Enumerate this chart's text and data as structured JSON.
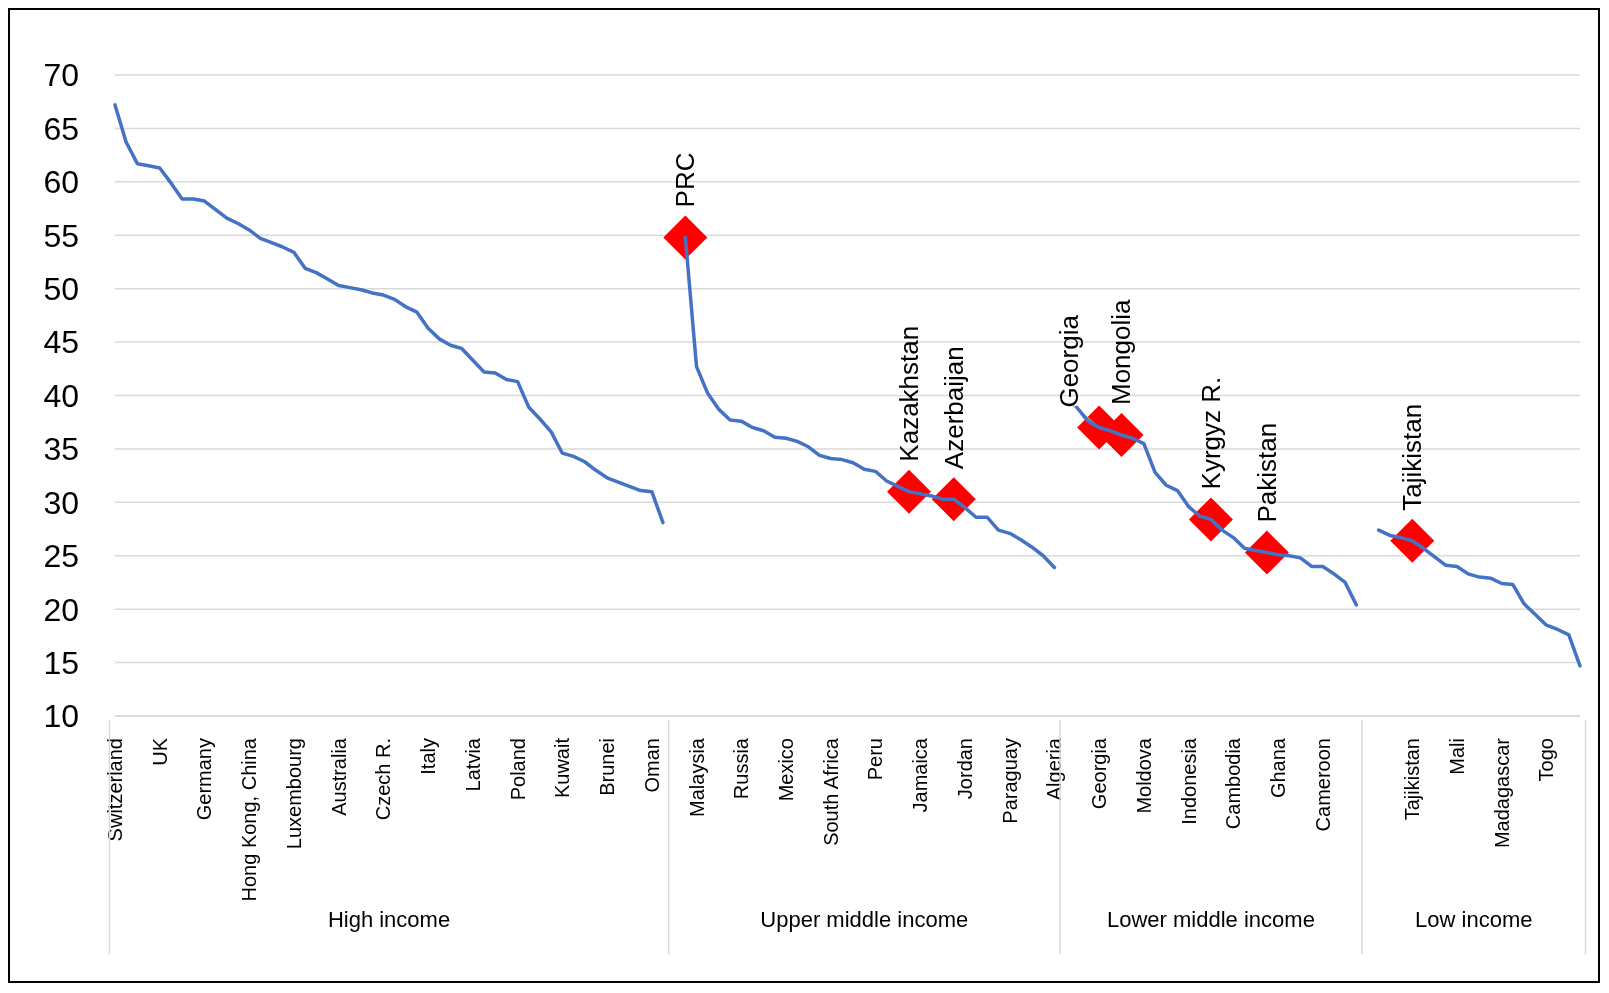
{
  "chart_data": {
    "type": "line",
    "ylim": [
      10,
      70
    ],
    "yticks": [
      10,
      15,
      20,
      25,
      30,
      35,
      40,
      45,
      50,
      55,
      60,
      65,
      70
    ],
    "grid": "y",
    "line_style": "solid",
    "categories": [
      "Switzerland",
      null,
      null,
      null,
      "UK",
      null,
      null,
      null,
      "Germany",
      null,
      null,
      null,
      "Hong Kong, China",
      null,
      null,
      null,
      "Luxembourg",
      null,
      null,
      null,
      "Australia",
      null,
      null,
      null,
      "Czech R.",
      null,
      null,
      null,
      "Italy",
      null,
      null,
      null,
      "Latvia",
      null,
      null,
      null,
      "Poland",
      null,
      null,
      null,
      "Kuwait",
      null,
      null,
      null,
      "Brunei",
      null,
      null,
      null,
      "Oman",
      null,
      null,
      null,
      "Malaysia",
      null,
      null,
      null,
      "Russia",
      null,
      null,
      null,
      "Mexico",
      null,
      null,
      null,
      "South Africa",
      null,
      null,
      null,
      "Peru",
      null,
      null,
      null,
      "Jamaica",
      null,
      null,
      null,
      "Jordan",
      null,
      null,
      null,
      "Paraguay",
      null,
      null,
      null,
      "Algeria",
      null,
      null,
      null,
      "Georgia",
      null,
      null,
      null,
      "Moldova",
      null,
      null,
      null,
      "Indonesia",
      null,
      null,
      null,
      "Cambodia",
      null,
      null,
      null,
      "Ghana",
      null,
      null,
      null,
      "Cameroon",
      null,
      null,
      null,
      null,
      null,
      null,
      null,
      "Tajikistan",
      null,
      null,
      null,
      "Mali",
      null,
      null,
      null,
      "Madagascar",
      null,
      null,
      null,
      "Togo",
      null,
      null,
      null
    ],
    "series": [
      {
        "type": "line",
        "color": "#4472c4",
        "values": [
          67.2,
          63.7,
          61.7,
          61.5,
          61.3,
          59.9,
          58.4,
          58.4,
          58.2,
          57.4,
          56.6,
          56.1,
          55.5,
          54.7,
          54.3,
          53.9,
          53.4,
          51.9,
          51.5,
          50.9,
          50.3,
          50.1,
          49.9,
          49.6,
          49.4,
          49.0,
          48.3,
          47.8,
          46.3,
          45.3,
          44.7,
          44.4,
          43.3,
          42.2,
          42.1,
          41.5,
          41.3,
          38.9,
          37.8,
          36.6,
          34.6,
          34.3,
          33.8,
          33.0,
          32.3,
          31.9,
          31.5,
          31.1,
          31.0,
          28.1,
          null,
          54.8,
          42.7,
          40.2,
          38.7,
          37.7,
          37.6,
          37.0,
          36.7,
          36.1,
          36.0,
          35.7,
          35.2,
          34.4,
          34.1,
          34.0,
          33.7,
          33.1,
          32.9,
          32.0,
          31.5,
          31.0,
          30.8,
          30.6,
          30.3,
          30.3,
          29.5,
          28.6,
          28.6,
          27.4,
          27.1,
          26.5,
          25.8,
          25.0,
          23.9,
          null,
          38.9,
          37.6,
          37.0,
          36.7,
          36.3,
          36.0,
          35.5,
          32.8,
          31.6,
          31.1,
          29.6,
          28.7,
          28.4,
          27.4,
          26.7,
          25.7,
          25.5,
          25.3,
          25.1,
          25.0,
          24.8,
          24.0,
          24.0,
          23.3,
          22.5,
          20.4,
          null,
          27.4,
          26.9,
          26.7,
          26.4,
          25.7,
          24.9,
          24.1,
          24.0,
          23.3,
          23.0,
          22.9,
          22.4,
          22.3,
          20.5,
          19.5,
          18.5,
          18.1,
          17.6,
          14.7
        ]
      },
      {
        "type": "scatter",
        "color": "#ff0000",
        "marker": "diamond",
        "values": [
          null,
          null,
          null,
          null,
          null,
          null,
          null,
          null,
          null,
          null,
          null,
          null,
          null,
          null,
          null,
          null,
          null,
          null,
          null,
          null,
          null,
          null,
          null,
          null,
          null,
          null,
          null,
          null,
          null,
          null,
          null,
          null,
          null,
          null,
          null,
          null,
          null,
          null,
          null,
          null,
          null,
          null,
          null,
          null,
          null,
          null,
          null,
          null,
          null,
          null,
          null,
          54.8,
          null,
          null,
          null,
          null,
          null,
          null,
          null,
          null,
          null,
          null,
          null,
          null,
          null,
          null,
          null,
          null,
          null,
          null,
          null,
          31.0,
          null,
          null,
          null,
          30.3,
          null,
          null,
          null,
          null,
          null,
          null,
          null,
          null,
          null,
          null,
          null,
          null,
          37.0,
          null,
          36.3,
          null,
          null,
          null,
          null,
          null,
          null,
          null,
          28.4,
          null,
          null,
          null,
          null,
          25.3,
          null,
          null,
          null,
          null,
          null,
          null,
          null,
          null,
          null,
          null,
          null,
          null,
          26.4,
          null,
          null,
          null,
          null,
          null,
          null,
          null,
          null,
          null,
          null,
          null,
          null,
          null,
          null,
          null
        ],
        "value_labels": [
          null,
          null,
          null,
          null,
          null,
          null,
          null,
          null,
          null,
          null,
          null,
          null,
          null,
          null,
          null,
          null,
          null,
          null,
          null,
          null,
          null,
          null,
          null,
          null,
          null,
          null,
          null,
          null,
          null,
          null,
          null,
          null,
          null,
          null,
          null,
          null,
          null,
          null,
          null,
          null,
          null,
          null,
          null,
          null,
          null,
          null,
          null,
          null,
          null,
          null,
          null,
          "PRC",
          null,
          null,
          null,
          null,
          null,
          null,
          null,
          null,
          null,
          null,
          null,
          null,
          null,
          null,
          null,
          null,
          null,
          null,
          null,
          "Kazakhstan",
          null,
          null,
          null,
          "Azerbaijan",
          null,
          null,
          null,
          null,
          null,
          null,
          null,
          null,
          null,
          null,
          null,
          null,
          "Georgia",
          null,
          "Mongolia",
          null,
          null,
          null,
          null,
          null,
          null,
          null,
          "Kyrgyz R.",
          null,
          null,
          null,
          null,
          "Pakistan",
          null,
          null,
          null,
          null,
          null,
          null,
          null,
          null,
          null,
          null,
          null,
          null,
          "Tajikistan",
          null,
          null,
          null,
          null,
          null,
          null,
          null,
          null,
          null,
          null,
          null,
          null,
          null,
          null,
          null
        ]
      }
    ],
    "annotations": [
      "High income",
      "Upper middle income",
      "Lower middle income",
      "Low income"
    ]
  }
}
